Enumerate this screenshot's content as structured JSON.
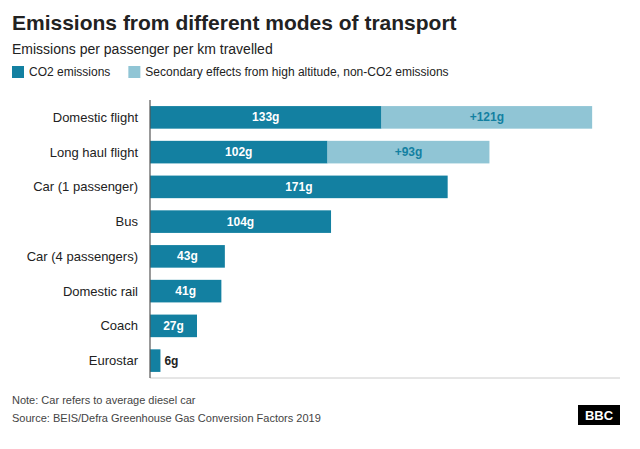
{
  "chart_data": {
    "type": "bar",
    "orientation": "horizontal",
    "stacked": true,
    "data_labels": true,
    "grid": false,
    "legend": "top",
    "tick_labels": "y",
    "title": "Emissions from different modes of transport",
    "subtitle": "Emissions per passenger per km travelled",
    "categories": [
      "Domestic flight",
      "Long haul flight",
      "Car (1 passenger)",
      "Bus",
      "Car (4 passengers)",
      "Domestic rail",
      "Coach",
      "Eurostar"
    ],
    "series": [
      {
        "name": "CO2 emissions",
        "color": "#1380A1",
        "values": [
          133,
          102,
          171,
          104,
          43,
          41,
          27,
          6
        ],
        "value_labels": [
          "133g",
          "102g",
          "171g",
          "104g",
          "43g",
          "41g",
          "27g",
          "6g"
        ]
      },
      {
        "name": "Secondary effects from high altitude, non-CO2 emissions",
        "color": "#90C5D5",
        "values": [
          121,
          93,
          0,
          0,
          0,
          0,
          0,
          0
        ],
        "value_labels": [
          "+121g",
          "+93g",
          null,
          null,
          null,
          null,
          null,
          null
        ]
      }
    ],
    "xlim": [
      0,
      270
    ],
    "xticks": [],
    "annotations": [
      "Note: Car refers to average diesel car",
      "Source: BEIS/Defra Greenhouse Gas Conversion Factors 2019",
      "BBC"
    ]
  }
}
